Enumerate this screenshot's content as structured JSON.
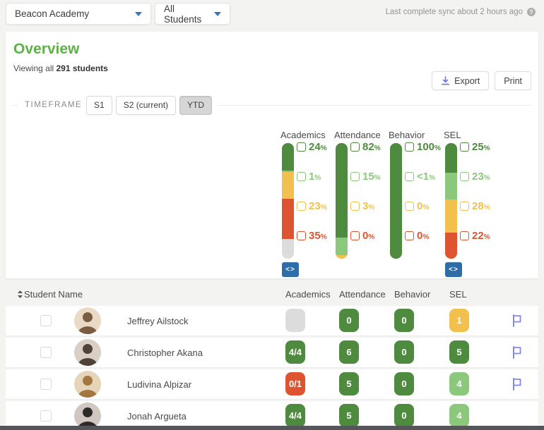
{
  "colors": {
    "dark_green": "#4E8B3E",
    "light_green": "#8CC87C",
    "yellow": "#F2C14D",
    "red": "#DE5430",
    "gray": "#DCDCDC",
    "accent_green": "#5CB246",
    "embed_blue": "#2E6DA8",
    "flag_purple": "#8487EC",
    "caret_blue": "#3D72B8",
    "icon_purple": "#6B74D8"
  },
  "topbar": {
    "school_dropdown": "Beacon Academy",
    "group_dropdown": "All Students",
    "sync_status": "Last complete sync about 2 hours ago"
  },
  "overview": {
    "title": "Overview",
    "viewing_prefix": "Viewing all ",
    "viewing_count": "291 students",
    "export_label": "Export",
    "print_label": "Print"
  },
  "timeframe": {
    "label": "TIMEFRAME",
    "options": [
      {
        "label": "S1",
        "selected": false
      },
      {
        "label": "S2 (current)",
        "selected": false
      },
      {
        "label": "YTD",
        "selected": true
      }
    ]
  },
  "chart_data": {
    "type": "bar",
    "subtype": "stacked-vertical-distribution",
    "categories": [
      "Academics",
      "Attendance",
      "Behavior",
      "SEL"
    ],
    "columns": [
      {
        "name": "Academics",
        "embed_button": true,
        "segments": [
          {
            "label": "24%",
            "value": 24,
            "color": "dark_green"
          },
          {
            "label": "1%",
            "value": 1,
            "color": "light_green"
          },
          {
            "label": "23%",
            "value": 23,
            "color": "yellow"
          },
          {
            "label": "35%",
            "value": 35,
            "color": "red"
          },
          {
            "label": "",
            "value": 17,
            "color": "gray"
          }
        ]
      },
      {
        "name": "Attendance",
        "embed_button": false,
        "segments": [
          {
            "label": "82%",
            "value": 82,
            "color": "dark_green"
          },
          {
            "label": "15%",
            "value": 15,
            "color": "light_green"
          },
          {
            "label": "3%",
            "value": 3,
            "color": "yellow"
          },
          {
            "label": "0%",
            "value": 0,
            "color": "red"
          }
        ]
      },
      {
        "name": "Behavior",
        "embed_button": false,
        "segments": [
          {
            "label": "100%",
            "value": 100,
            "color": "dark_green"
          },
          {
            "label": "<1%",
            "value": 0,
            "color": "light_green"
          },
          {
            "label": "0%",
            "value": 0,
            "color": "yellow"
          },
          {
            "label": "0%",
            "value": 0,
            "color": "red"
          }
        ]
      },
      {
        "name": "SEL",
        "embed_button": true,
        "segments": [
          {
            "label": "25%",
            "value": 25,
            "color": "dark_green"
          },
          {
            "label": "23%",
            "value": 23,
            "color": "light_green"
          },
          {
            "label": "28%",
            "value": 28,
            "color": "yellow"
          },
          {
            "label": "22%",
            "value": 22,
            "color": "red"
          }
        ]
      }
    ]
  },
  "table": {
    "name_header": "Student Name",
    "metric_headers": [
      "Academics",
      "Attendance",
      "Behavior",
      "SEL"
    ],
    "rows": [
      {
        "name": "Jeffrey Ailstock",
        "flag": true,
        "avatar": {
          "bg": "#EAD9C4",
          "fg": "#7A5C40"
        },
        "metrics": [
          {
            "text": "",
            "color": "gray"
          },
          {
            "text": "0",
            "color": "dark_green"
          },
          {
            "text": "0",
            "color": "dark_green"
          },
          {
            "text": "1",
            "color": "yellow"
          }
        ]
      },
      {
        "name": "Christopher Akana",
        "flag": true,
        "avatar": {
          "bg": "#D9CFC4",
          "fg": "#4F4238"
        },
        "metrics": [
          {
            "text": "4/4",
            "color": "dark_green"
          },
          {
            "text": "6",
            "color": "dark_green"
          },
          {
            "text": "0",
            "color": "dark_green"
          },
          {
            "text": "5",
            "color": "dark_green"
          }
        ]
      },
      {
        "name": "Ludivina Alpizar",
        "flag": true,
        "avatar": {
          "bg": "#E6D4B8",
          "fg": "#A3773F"
        },
        "metrics": [
          {
            "text": "0/1",
            "color": "red"
          },
          {
            "text": "5",
            "color": "dark_green"
          },
          {
            "text": "0",
            "color": "dark_green"
          },
          {
            "text": "4",
            "color": "light_green"
          }
        ]
      },
      {
        "name": "Jonah Argueta",
        "flag": false,
        "avatar": {
          "bg": "#CFC7C0",
          "fg": "#2E2A28"
        },
        "metrics": [
          {
            "text": "4/4",
            "color": "dark_green"
          },
          {
            "text": "5",
            "color": "dark_green"
          },
          {
            "text": "0",
            "color": "dark_green"
          },
          {
            "text": "4",
            "color": "light_green"
          }
        ]
      }
    ]
  },
  "misc": {
    "embed_icon": "<>",
    "help_glyph": "?"
  }
}
